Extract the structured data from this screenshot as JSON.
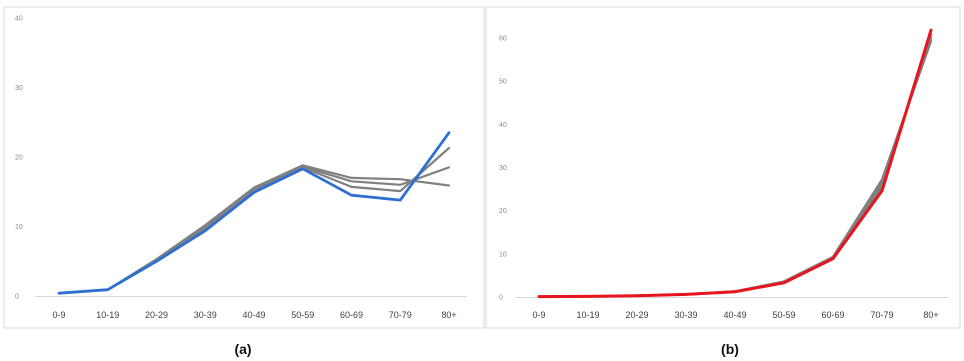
{
  "captions": [
    "(a)",
    "(b)"
  ],
  "chart_data": [
    {
      "type": "line",
      "categories": [
        "0-9",
        "10-19",
        "20-29",
        "30-39",
        "40-49",
        "50-59",
        "60-69",
        "70-79",
        "80+"
      ],
      "ylim": [
        0,
        40
      ],
      "yticks": [
        "0",
        "10",
        "20",
        "30",
        "40"
      ],
      "grid": false,
      "series": [
        {
          "color": "#808080",
          "values": [
            0.4,
            0.9,
            5.3,
            10.2,
            15.6,
            18.8,
            17.0,
            16.8,
            15.9
          ]
        },
        {
          "color": "#808080",
          "values": [
            0.4,
            0.9,
            5.2,
            10.0,
            15.4,
            18.6,
            16.5,
            16.0,
            18.5
          ]
        },
        {
          "color": "#808080",
          "values": [
            0.4,
            0.9,
            5.1,
            9.8,
            15.2,
            18.5,
            15.7,
            15.1,
            21.3
          ]
        },
        {
          "color": "#2e6fd1",
          "values": [
            0.4,
            0.9,
            5.0,
            9.4,
            14.9,
            18.3,
            14.5,
            13.8,
            23.5
          ]
        }
      ]
    },
    {
      "type": "line",
      "categories": [
        "0-9",
        "10-19",
        "20-29",
        "30-39",
        "40-49",
        "50-59",
        "60-69",
        "70-79",
        "80+"
      ],
      "ylim": [
        0,
        60
      ],
      "yticks": [
        "0",
        "10",
        "20",
        "30",
        "40",
        "50",
        "60"
      ],
      "grid": false,
      "series": [
        {
          "color": "#808080",
          "values": [
            0.1,
            0.15,
            0.3,
            0.6,
            1.3,
            3.6,
            9.3,
            27.2,
            59.3
          ]
        },
        {
          "color": "#808080",
          "values": [
            0.1,
            0.15,
            0.3,
            0.6,
            1.3,
            3.5,
            9.2,
            26.3,
            60.0
          ]
        },
        {
          "color": "#808080",
          "values": [
            0.1,
            0.15,
            0.3,
            0.6,
            1.2,
            3.4,
            9.1,
            25.5,
            60.8
          ]
        },
        {
          "color": "#e8141e",
          "values": [
            0.1,
            0.15,
            0.3,
            0.6,
            1.2,
            3.3,
            8.9,
            24.6,
            61.8
          ]
        }
      ]
    }
  ]
}
